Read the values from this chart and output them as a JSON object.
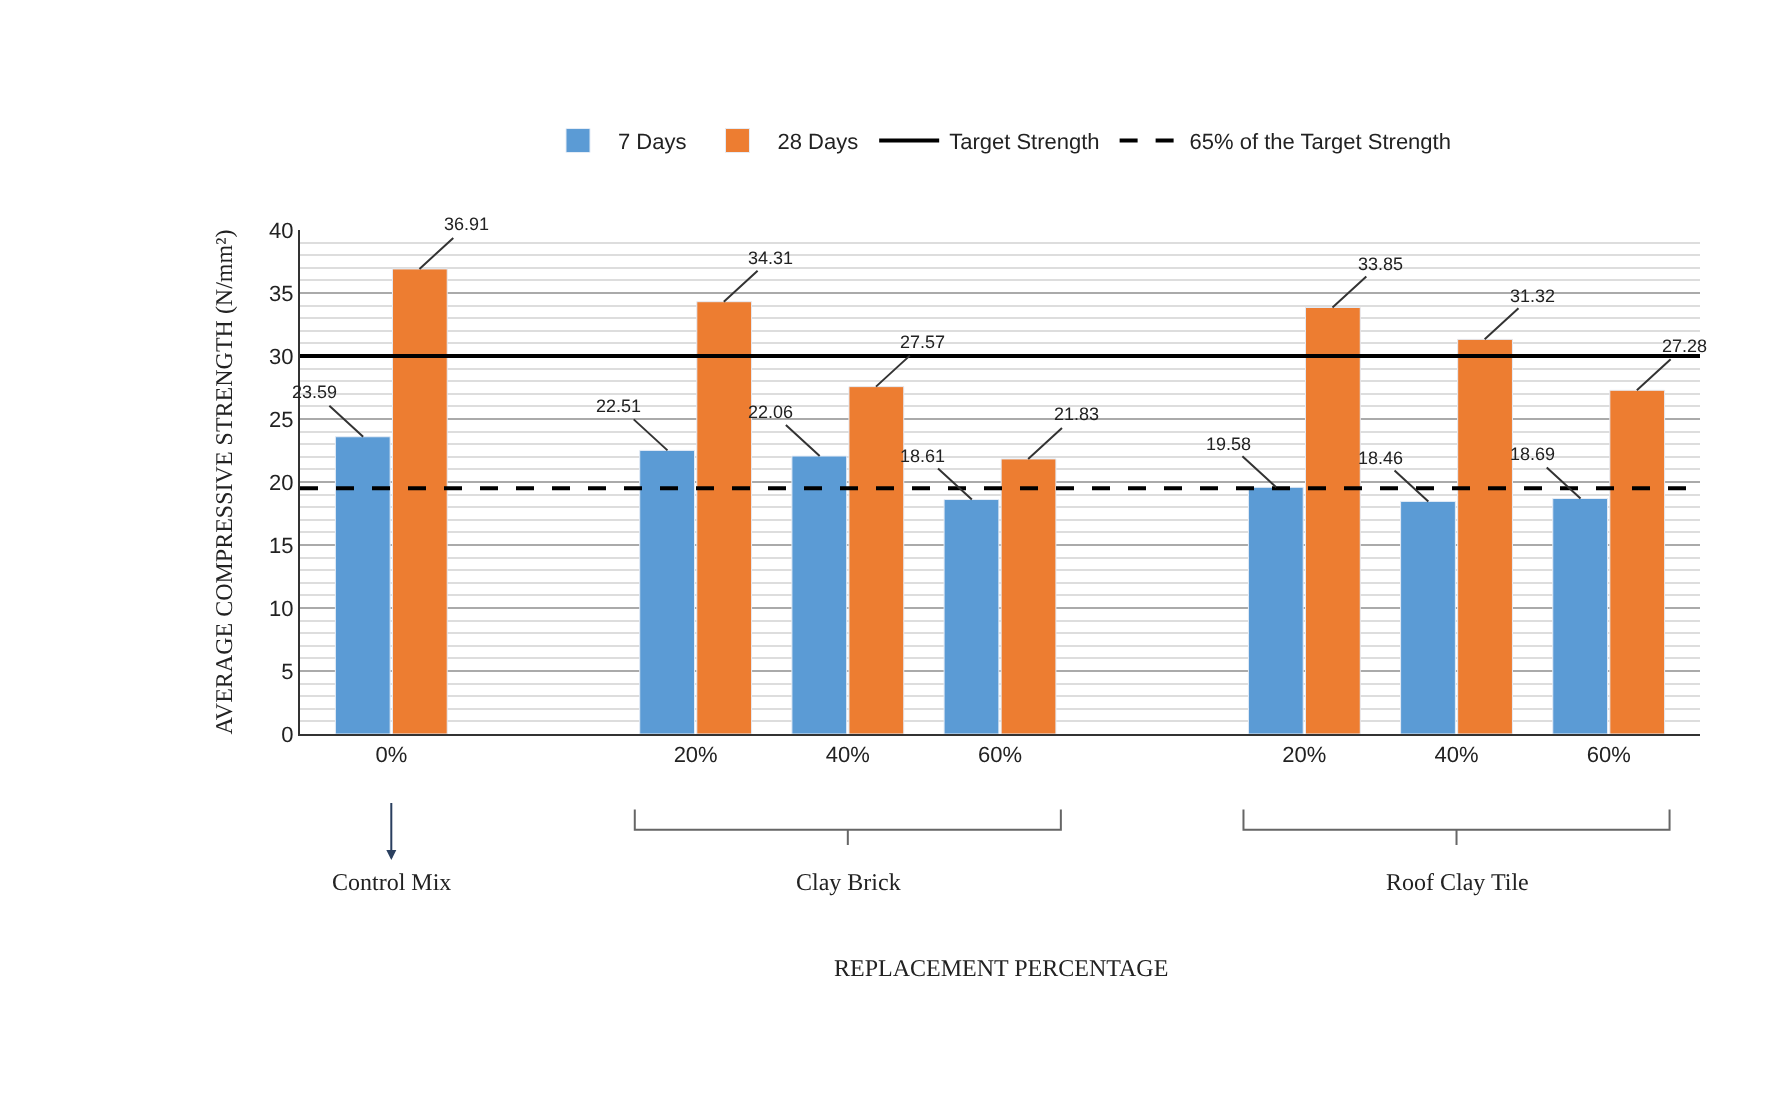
{
  "chart_data": {
    "type": "bar",
    "ylabel": "AVERAGE COMPRESSIVE STRENGTH (N/mm²)",
    "categories": [
      "0%",
      null,
      "20%",
      "40%",
      "60%",
      null,
      "20%",
      "40%",
      "60%"
    ],
    "series": [
      {
        "name": "7 Days",
        "color": "#5b9bd5",
        "values": [
          23.59,
          null,
          22.51,
          22.06,
          18.61,
          null,
          19.58,
          18.46,
          18.69
        ]
      },
      {
        "name": "28 Days",
        "color": "#ed7d31",
        "values": [
          36.91,
          null,
          34.31,
          27.57,
          21.83,
          null,
          33.85,
          31.32,
          27.28
        ]
      }
    ],
    "ref_lines": [
      {
        "axis": "y",
        "value": 30,
        "label": "Target Strength",
        "color": "#000000",
        "line_style": "solid"
      },
      {
        "axis": "y",
        "value": 19.5,
        "label": "65% of the Target Strength",
        "color": "#000000",
        "line_style": "dashed"
      }
    ],
    "annotations": [
      "Control Mix",
      "Clay Brick",
      "Roof Clay Tile",
      "REPLACEMENT PERCENTAGE"
    ],
    "ylim": [
      0,
      40
    ],
    "yticks": [
      0,
      5,
      10,
      15,
      20,
      25,
      30,
      35,
      40
    ],
    "grid": "y",
    "legend": "top",
    "data_labels": true
  }
}
